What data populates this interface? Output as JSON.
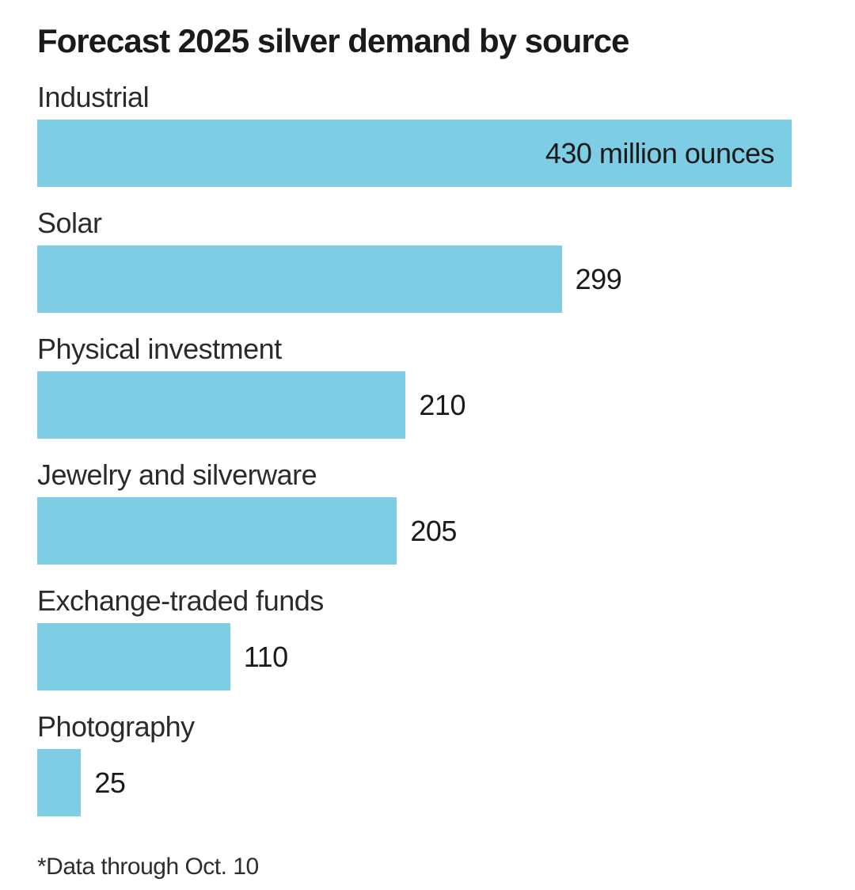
{
  "chart_data": {
    "type": "bar",
    "orientation": "horizontal",
    "title": "Forecast 2025 silver demand by source",
    "categories": [
      "Industrial",
      "Solar",
      "Physical investment",
      "Jewelry and silverware",
      "Exchange-traded funds",
      "Photography"
    ],
    "values": [
      430,
      299,
      210,
      205,
      110,
      25
    ],
    "value_labels": [
      "430 million ounces",
      "299",
      "210",
      "205",
      "110",
      "25"
    ],
    "xlim": [
      0,
      430
    ],
    "grid": false,
    "legend": "none",
    "bar_color": "#7DCEE4",
    "value_label_placement": [
      "inside-right",
      "outside-right",
      "outside-right",
      "outside-right",
      "outside-right",
      "outside-right"
    ],
    "footnote": "*Data through Oct. 10"
  }
}
